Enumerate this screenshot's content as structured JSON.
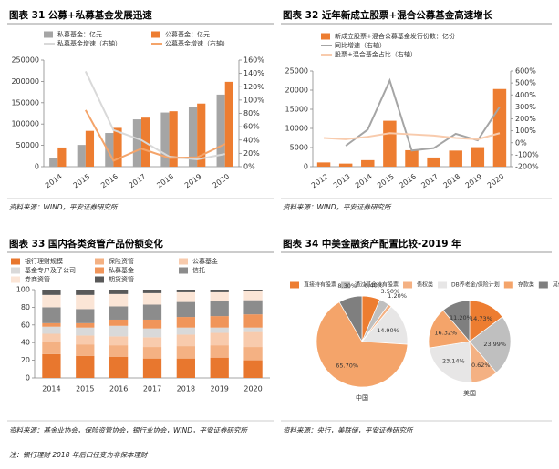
{
  "chart_data": [
    {
      "type": "combo",
      "title": "图表 31  公募+私募基金发展迅速",
      "categories": [
        "2014",
        "2015",
        "2016",
        "2017",
        "2018",
        "2019",
        "2020"
      ],
      "series": [
        {
          "name": "私募基金：亿元",
          "mark": "bar",
          "color": "#a5a5a5",
          "values": [
            21000,
            51000,
            79000,
            111000,
            127000,
            141000,
            169000
          ]
        },
        {
          "name": "公募基金：亿元",
          "mark": "bar",
          "color": "#ed7d31",
          "values": [
            45000,
            84000,
            91000,
            115000,
            130000,
            148000,
            199000
          ]
        },
        {
          "name": "私募基金增速（右轴）",
          "mark": "line",
          "axis": "y2",
          "color": "#d9d9d9",
          "values": [
            null,
            143,
            55,
            40,
            15,
            11,
            19
          ]
        },
        {
          "name": "公募基金增速（右轴）",
          "mark": "line",
          "axis": "y2",
          "color": "#f4a46a",
          "values": [
            null,
            85,
            9,
            27,
            13,
            14,
            34
          ]
        }
      ],
      "ylim": [
        0,
        250000
      ],
      "yticks": [
        0,
        50000,
        100000,
        150000,
        200000,
        250000
      ],
      "y2lim": [
        0,
        160
      ],
      "y2ticks": [
        {
          "value": 0,
          "label": "0%"
        },
        {
          "value": 20,
          "label": "20%"
        },
        {
          "value": 40,
          "label": "40%"
        },
        {
          "value": 60,
          "label": "60%"
        },
        {
          "value": 80,
          "label": "80%"
        },
        {
          "value": 100,
          "label": "100%"
        },
        {
          "value": 120,
          "label": "120%"
        },
        {
          "value": 140,
          "label": "140%"
        },
        {
          "value": 160,
          "label": "160%"
        }
      ],
      "source": "资料来源：WIND，平安证券研究所"
    },
    {
      "type": "combo",
      "title": "图表 32  近年新成立股票+混合公募基金高速增长",
      "categories": [
        "2012",
        "2013",
        "2014",
        "2015",
        "2016",
        "2017",
        "2018",
        "2019",
        "2020"
      ],
      "series": [
        {
          "name": "新成立股票+混合公募基金发行份数：亿份",
          "mark": "bar",
          "color": "#ed7d31",
          "values": [
            1100,
            800,
            1700,
            12000,
            4300,
            2400,
            4200,
            5100,
            20300
          ]
        },
        {
          "name": "同比增速（右轴）",
          "mark": "line",
          "axis": "y2",
          "color": "#a5a5a5",
          "values": [
            null,
            -25,
            110,
            520,
            -65,
            -45,
            75,
            20,
            300
          ]
        },
        {
          "name": "股票+混合基金占比（右轴）",
          "mark": "line",
          "axis": "y2",
          "color": "#f8cbad",
          "values": [
            40,
            30,
            50,
            80,
            70,
            60,
            40,
            30,
            80
          ]
        }
      ],
      "ylim": [
        0,
        25000
      ],
      "yticks": [
        0,
        5000,
        10000,
        15000,
        20000,
        25000
      ],
      "y2lim": [
        -200,
        600
      ],
      "y2ticks": [
        {
          "value": -200,
          "label": "-200%"
        },
        {
          "value": -100,
          "label": "-100%"
        },
        {
          "value": 0,
          "label": "0%"
        },
        {
          "value": 100,
          "label": "100%"
        },
        {
          "value": 200,
          "label": "200%"
        },
        {
          "value": 300,
          "label": "300%"
        },
        {
          "value": 400,
          "label": "400%"
        },
        {
          "value": 500,
          "label": "500%"
        },
        {
          "value": 600,
          "label": "600%"
        }
      ],
      "source": "资料来源：WIND，平安证券研究所"
    },
    {
      "type": "stacked_bar",
      "title": "图表 33  国内各类资管产品份额变化",
      "categories": [
        "2014",
        "2015",
        "2016",
        "2017",
        "2018",
        "2019",
        "2020"
      ],
      "series": [
        {
          "name": "银行理财规模",
          "color": "#e8772e",
          "values": [
            27,
            25,
            24,
            22,
            22,
            23,
            20
          ]
        },
        {
          "name": "保险资管",
          "color": "#f4b183",
          "values": [
            14,
            13,
            13,
            13,
            14,
            14,
            15
          ]
        },
        {
          "name": "公募基金",
          "color": "#f8cbad",
          "values": [
            9,
            10,
            10,
            11,
            13,
            14,
            17
          ]
        },
        {
          "name": "基金专户及子公司",
          "color": "#d9d9d9",
          "values": [
            8,
            9,
            12,
            10,
            8,
            6,
            5
          ]
        },
        {
          "name": "私募基金",
          "color": "#f0955a",
          "values": [
            4,
            5,
            7,
            10,
            12,
            13,
            15
          ]
        },
        {
          "name": "信托",
          "color": "#8c8c8c",
          "values": [
            18,
            16,
            15,
            17,
            17,
            17,
            16
          ]
        },
        {
          "name": "券商资管",
          "color": "#fbe5d6",
          "values": [
            14,
            16,
            14,
            13,
            11,
            10,
            10
          ]
        },
        {
          "name": "期货资管",
          "color": "#595959",
          "values": [
            6,
            6,
            5,
            4,
            3,
            3,
            2
          ]
        }
      ],
      "ylim": [
        0,
        100
      ],
      "yticks": [
        0,
        20,
        40,
        60,
        80,
        100
      ],
      "source": "资料来源：基金业协会，保险资管协会，银行业协会，WIND，平安证券研究所",
      "note": "注：银行理财 2018 年后口径变为非保本理财"
    },
    {
      "type": "pie",
      "title": "图表 34  中美金融资产配置比较-2019 年",
      "categories": [
        "直接持有股票",
        "通过基金持有股票",
        "债权类",
        "DB养老金/保险计划",
        "存款类",
        "其他"
      ],
      "colors": [
        "#ed7d31",
        "#bfbfbf",
        "#f4b183",
        "#e7e6e6",
        "#f4a46a",
        "#7f7f7f"
      ],
      "pies": [
        {
          "name": "中国",
          "values": [
            6.4,
            3.5,
            1.2,
            14.9,
            65.7,
            8.3
          ],
          "value_labels": [
            "6.40%",
            "3.50%",
            "1.20%",
            "14.90%",
            "65.70%",
            "8.30%"
          ]
        },
        {
          "name": "美国",
          "values": [
            14.73,
            23.99,
            10.62,
            23.14,
            16.32,
            11.2
          ],
          "value_labels": [
            "14.73%",
            "23.99%",
            "10.62%",
            "23.14%",
            "16.32%",
            "11.20%"
          ]
        }
      ],
      "source": "资料来源：央行，美联储，平安证券研究所"
    }
  ]
}
